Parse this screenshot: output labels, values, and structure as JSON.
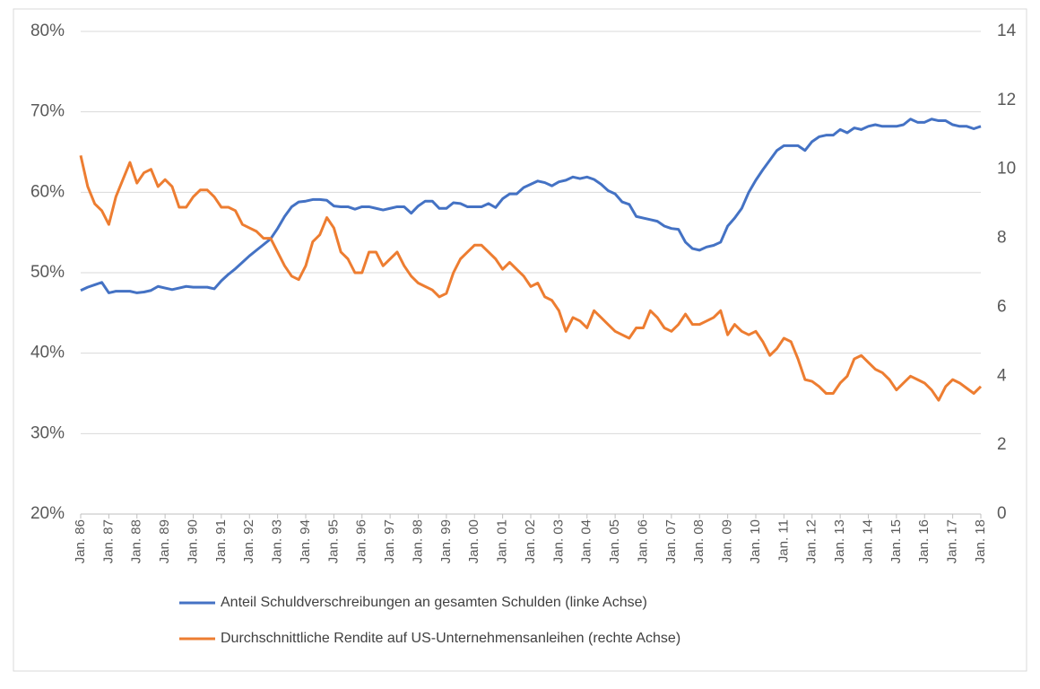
{
  "chart_data": {
    "type": "line",
    "categories": [
      "Jan. 86",
      null,
      null,
      null,
      "Jan. 87",
      null,
      null,
      null,
      "Jan. 88",
      null,
      null,
      null,
      "Jan. 89",
      null,
      null,
      null,
      "Jan. 90",
      null,
      null,
      null,
      "Jan. 91",
      null,
      null,
      null,
      "Jan. 92",
      null,
      null,
      null,
      "Jan. 93",
      null,
      null,
      null,
      "Jan. 94",
      null,
      null,
      null,
      "Jan. 95",
      null,
      null,
      null,
      "Jan. 96",
      null,
      null,
      null,
      "Jan. 97",
      null,
      null,
      null,
      "Jan. 98",
      null,
      null,
      null,
      "Jan. 99",
      null,
      null,
      null,
      "Jan. 00",
      null,
      null,
      null,
      "Jan. 01",
      null,
      null,
      null,
      "Jan. 02",
      null,
      null,
      null,
      "Jan. 03",
      null,
      null,
      null,
      "Jan. 04",
      null,
      null,
      null,
      "Jan. 05",
      null,
      null,
      null,
      "Jan. 06",
      null,
      null,
      null,
      "Jan. 07",
      null,
      null,
      null,
      "Jan. 08",
      null,
      null,
      null,
      "Jan. 09",
      null,
      null,
      null,
      "Jan. 10",
      null,
      null,
      null,
      "Jan. 11",
      null,
      null,
      null,
      "Jan. 12",
      null,
      null,
      null,
      "Jan. 13",
      null,
      null,
      null,
      "Jan. 14",
      null,
      null,
      null,
      "Jan. 15",
      null,
      null,
      null,
      "Jan. 16",
      null,
      null,
      null,
      "Jan. 17",
      null,
      null,
      null,
      "Jan. 18"
    ],
    "series": [
      {
        "name": "Anteil Schuldverschreibungen an gesamten Schulden (linke Achse)",
        "color": "#4472c4",
        "values": [
          47.8,
          48.2,
          48.5,
          48.8,
          47.5,
          47.7,
          47.7,
          47.7,
          47.5,
          47.6,
          47.8,
          48.3,
          48.1,
          47.9,
          48.1,
          48.3,
          48.2,
          48.2,
          48.2,
          48.0,
          49.0,
          49.8,
          50.5,
          51.3,
          52.1,
          52.8,
          53.5,
          54.2,
          55.5,
          57.0,
          58.2,
          58.8,
          58.9,
          59.1,
          59.1,
          59.0,
          58.3,
          58.2,
          58.2,
          57.9,
          58.2,
          58.2,
          58.0,
          57.8,
          58.0,
          58.2,
          58.2,
          57.4,
          58.3,
          58.9,
          58.9,
          58.0,
          58.0,
          58.7,
          58.6,
          58.2,
          58.2,
          58.2,
          58.6,
          58.1,
          59.2,
          59.8,
          59.8,
          60.6,
          61.0,
          61.4,
          61.2,
          60.8,
          61.3,
          61.5,
          61.9,
          61.7,
          61.9,
          61.6,
          61.0,
          60.2,
          59.8,
          58.8,
          58.5,
          57.0,
          56.8,
          56.6,
          56.4,
          55.8,
          55.5,
          55.4,
          53.8,
          53.0,
          52.8,
          53.2,
          53.4,
          53.8,
          55.8,
          56.8,
          58.0,
          60.0,
          61.5,
          62.8,
          64.0,
          65.2,
          65.8,
          65.8,
          65.8,
          65.2,
          66.3,
          66.9,
          67.1,
          67.1,
          67.8,
          67.4,
          68.0,
          67.8,
          68.2,
          68.4,
          68.2,
          68.2,
          68.2,
          68.4,
          69.1,
          68.7,
          68.7,
          69.1,
          68.9,
          68.9,
          68.4,
          68.2,
          68.2,
          67.9,
          68.2
        ]
      },
      {
        "name": "Durchschnittliche Rendite auf US-Unternehmensanleihen (rechte Achse)",
        "color": "#ed7d31",
        "axis": "y2",
        "values": [
          10.4,
          9.5,
          9.0,
          8.8,
          8.4,
          9.2,
          9.7,
          10.2,
          9.6,
          9.9,
          10.0,
          9.5,
          9.7,
          9.5,
          8.9,
          8.9,
          9.2,
          9.4,
          9.4,
          9.2,
          8.9,
          8.9,
          8.8,
          8.4,
          8.3,
          8.2,
          8.0,
          8.0,
          7.6,
          7.2,
          6.9,
          6.8,
          7.2,
          7.9,
          8.1,
          8.6,
          8.3,
          7.6,
          7.4,
          7.0,
          7.0,
          7.6,
          7.6,
          7.2,
          7.4,
          7.6,
          7.2,
          6.9,
          6.7,
          6.6,
          6.5,
          6.3,
          6.4,
          7.0,
          7.4,
          7.6,
          7.8,
          7.8,
          7.6,
          7.4,
          7.1,
          7.3,
          7.1,
          6.9,
          6.6,
          6.7,
          6.3,
          6.2,
          5.9,
          5.3,
          5.7,
          5.6,
          5.4,
          5.9,
          5.7,
          5.5,
          5.3,
          5.2,
          5.1,
          5.4,
          5.4,
          5.9,
          5.7,
          5.4,
          5.3,
          5.5,
          5.8,
          5.5,
          5.5,
          5.6,
          5.7,
          5.9,
          5.2,
          5.5,
          5.3,
          5.2,
          5.3,
          5.0,
          4.6,
          4.8,
          5.1,
          5.0,
          4.5,
          3.9,
          3.85,
          3.7,
          3.5,
          3.5,
          3.8,
          4.0,
          4.5,
          4.6,
          4.4,
          4.2,
          4.1,
          3.9,
          3.6,
          3.8,
          4.0,
          3.9,
          3.8,
          3.6,
          3.3,
          3.7,
          3.9,
          3.8,
          3.65,
          3.5,
          3.7
        ]
      }
    ],
    "ylim": [
      20,
      80
    ],
    "yticks": [
      {
        "value": 20,
        "label": "20%"
      },
      {
        "value": 30,
        "label": "30%"
      },
      {
        "value": 40,
        "label": "40%"
      },
      {
        "value": 50,
        "label": "50%"
      },
      {
        "value": 60,
        "label": "60%"
      },
      {
        "value": 70,
        "label": "70%"
      },
      {
        "value": 80,
        "label": "80%"
      }
    ],
    "y2lim": [
      0,
      14
    ],
    "y2ticks": [
      0,
      2,
      4,
      6,
      8,
      10,
      12,
      14
    ],
    "grid": true,
    "legend": "bottom"
  }
}
